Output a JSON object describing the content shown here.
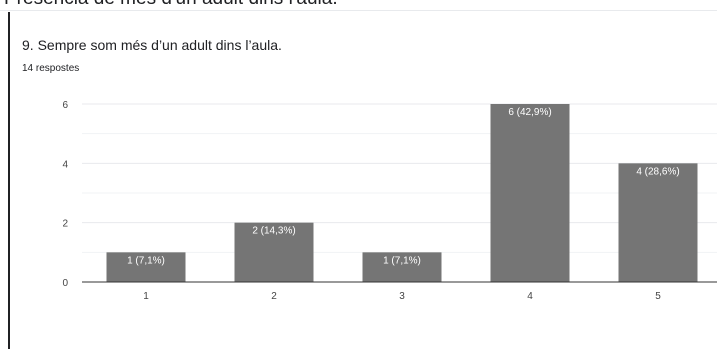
{
  "section": {
    "title": "Presència de més d'un adult dins l'aula."
  },
  "question": {
    "title": "9. Sempre som més d’un adult dins l’aula.",
    "responses": "14 respostes"
  },
  "colors": {
    "bar": "#757575",
    "grid": "#e8eaed",
    "axis": "#333333",
    "text": "#202124",
    "tick": "#444444",
    "label": "#ffffff"
  },
  "chart_data": {
    "type": "bar",
    "categories": [
      "1",
      "2",
      "3",
      "4",
      "5"
    ],
    "values": [
      1,
      2,
      1,
      6,
      4
    ],
    "labels": [
      "1 (7,1%)",
      "2 (14,3%)",
      "1 (7,1%)",
      "6 (42,9%)",
      "4 (28,6%)"
    ],
    "y_ticks": [
      0,
      2,
      4,
      6
    ],
    "ylim": [
      0,
      6
    ],
    "grid": true,
    "legend": "none"
  }
}
